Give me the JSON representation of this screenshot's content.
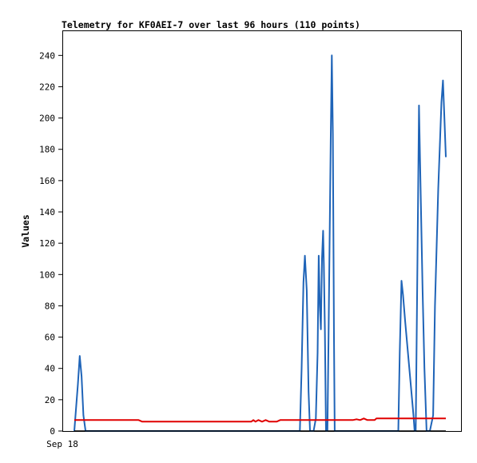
{
  "chart_data": {
    "type": "line",
    "title": "Telemetry for KF0AEI-7 over last 96 hours (110 points)",
    "xlabel": "",
    "ylabel": "Values",
    "x_tick_labels": [
      "Sep 18"
    ],
    "y_ticks": [
      0,
      20,
      40,
      60,
      80,
      100,
      120,
      140,
      160,
      180,
      200,
      220,
      240
    ],
    "xlim": [
      0,
      110
    ],
    "ylim": [
      0,
      256
    ],
    "grid": false,
    "legend": "none",
    "series": [
      {
        "color": "#1f64b8",
        "values": [
          [
            3.3,
            0
          ],
          [
            4.3,
            30
          ],
          [
            4.8,
            48
          ],
          [
            5.3,
            35
          ],
          [
            5.8,
            10
          ],
          [
            6.4,
            0
          ],
          [
            65.4,
            0
          ],
          [
            65.9,
            40
          ],
          [
            66.4,
            95
          ],
          [
            66.8,
            112
          ],
          [
            67.3,
            90
          ],
          [
            67.8,
            25
          ],
          [
            68.2,
            0
          ],
          [
            69.2,
            0
          ],
          [
            69.8,
            8
          ],
          [
            70.3,
            50
          ],
          [
            70.6,
            112
          ],
          [
            70.9,
            80
          ],
          [
            71.2,
            65
          ],
          [
            71.5,
            110
          ],
          [
            71.8,
            128
          ],
          [
            72.0,
            107
          ],
          [
            72.3,
            65
          ],
          [
            72.6,
            0
          ],
          [
            73.0,
            0
          ],
          [
            73.3,
            60
          ],
          [
            73.6,
            120
          ],
          [
            73.9,
            185
          ],
          [
            74.2,
            240
          ],
          [
            74.5,
            190
          ],
          [
            74.8,
            60
          ],
          [
            75.0,
            0
          ],
          [
            92.5,
            0
          ],
          [
            92.9,
            50
          ],
          [
            93.4,
            96
          ],
          [
            93.8,
            87
          ],
          [
            94.4,
            70
          ],
          [
            96.7,
            10
          ],
          [
            97.0,
            0
          ],
          [
            97.3,
            0
          ],
          [
            97.8,
            110
          ],
          [
            98.2,
            208
          ],
          [
            98.6,
            160
          ],
          [
            99.2,
            90
          ],
          [
            99.7,
            40
          ],
          [
            100.3,
            0
          ],
          [
            101.2,
            0
          ],
          [
            102.1,
            10
          ],
          [
            102.6,
            80
          ],
          [
            103.5,
            155
          ],
          [
            104.4,
            210
          ],
          [
            104.8,
            224
          ],
          [
            105.2,
            200
          ],
          [
            105.6,
            175
          ]
        ]
      },
      {
        "color": "#e00000",
        "values": [
          [
            3.3,
            7.0
          ],
          [
            21.0,
            7.0
          ],
          [
            22.0,
            6.0
          ],
          [
            52.0,
            6.0
          ],
          [
            52.6,
            7.0
          ],
          [
            53.2,
            6.0
          ],
          [
            54.0,
            7.0
          ],
          [
            55.0,
            6.0
          ],
          [
            56.0,
            7.0
          ],
          [
            57.0,
            6.0
          ],
          [
            59.0,
            6.0
          ],
          [
            60.0,
            7.0
          ],
          [
            80.0,
            7.0
          ],
          [
            81.0,
            7.5
          ],
          [
            82.0,
            7.0
          ],
          [
            83.0,
            8.0
          ],
          [
            84.0,
            7.0
          ],
          [
            86.0,
            7.0
          ],
          [
            86.5,
            8.0
          ],
          [
            105.6,
            8.0
          ]
        ]
      },
      {
        "color": "#000000",
        "values": [
          [
            3.3,
            0
          ],
          [
            105.6,
            0
          ]
        ]
      }
    ]
  }
}
